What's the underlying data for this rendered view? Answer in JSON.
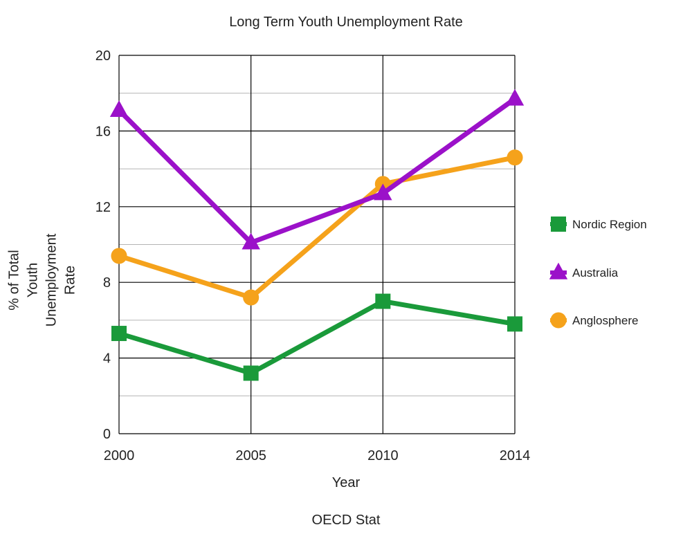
{
  "chart_data": {
    "type": "line",
    "title": "Long Term Youth Unemployment Rate",
    "xlabel": "Year",
    "ylabel_lines": [
      "% of Total",
      "Youth",
      "Unemployment",
      "Rate"
    ],
    "source": "OECD Stat",
    "categories": [
      "2000",
      "2005",
      "2010",
      "2014"
    ],
    "ylim": [
      0,
      20
    ],
    "y_ticks": [
      0,
      4,
      8,
      12,
      16,
      20
    ],
    "y_minor_step": 2,
    "grid": true,
    "legend_position": "right",
    "series": [
      {
        "name": "Nordic Region",
        "marker": "square",
        "color": "#1a9a3a",
        "values": [
          5.3,
          3.2,
          7.0,
          5.8
        ]
      },
      {
        "name": "Australia",
        "marker": "triangle",
        "color": "#9b11c9",
        "values": [
          17.1,
          10.1,
          12.7,
          17.7
        ]
      },
      {
        "name": "Anglosphere",
        "marker": "circle",
        "color": "#f5a21b",
        "values": [
          9.4,
          7.2,
          13.2,
          14.6
        ]
      }
    ]
  }
}
